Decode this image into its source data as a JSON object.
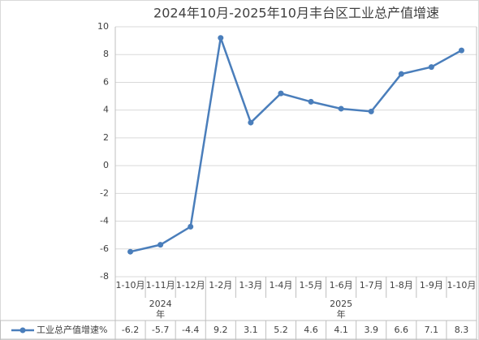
{
  "chart_data": {
    "type": "line",
    "title": "2024年10月-2025年10月丰台区工业总产值增速",
    "groups": [
      {
        "label": "2024年",
        "categories": [
          "1-10月",
          "1-11月",
          "1-12月"
        ]
      },
      {
        "label": "2025年",
        "categories": [
          "1-2月",
          "1-3月",
          "1-4月",
          "1-5月",
          "1-6月",
          "1-7月",
          "1-8月",
          "1-9月",
          "1-10月"
        ]
      }
    ],
    "series": [
      {
        "name": "工业总产值增速%",
        "color": "#4a7ebb",
        "values": [
          -6.2,
          -5.7,
          -4.4,
          9.2,
          3.1,
          5.2,
          4.6,
          4.1,
          3.9,
          6.6,
          7.1,
          8.3
        ]
      }
    ],
    "ylim": [
      -8,
      10
    ],
    "yticks": [
      -8,
      -6,
      -4,
      -2,
      0,
      2,
      4,
      6,
      8,
      10
    ],
    "grid": true
  }
}
